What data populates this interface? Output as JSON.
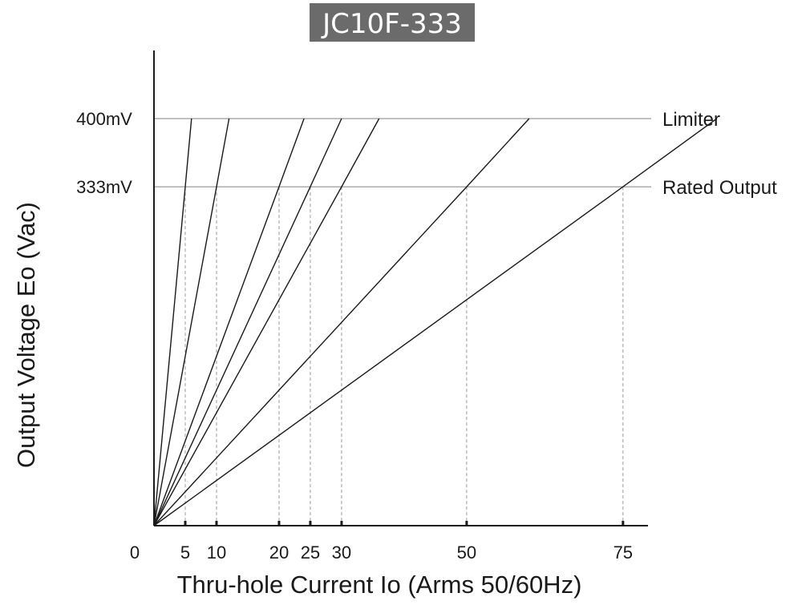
{
  "chart_data": {
    "type": "line",
    "title": "JC10F-333",
    "xlabel": "Thru-hole Current Io (Arms 50/60Hz)",
    "ylabel": "Output Voltage Eo (Vac)",
    "x_origin_label": "0",
    "xticks": [
      5,
      10,
      20,
      25,
      30,
      50,
      75
    ],
    "xlim": [
      0,
      79
    ],
    "ylim": [
      0,
      0.5
    ],
    "reference_lines": [
      {
        "label": "Limiter",
        "value": 0.4,
        "tick_label": "400mV"
      },
      {
        "label": "Rated Output",
        "value": 0.333,
        "tick_label": "333mV"
      }
    ],
    "series": [
      {
        "rated_current": 5,
        "x": [
          0,
          5,
          6
        ],
        "y": [
          0,
          0.333,
          0.4
        ]
      },
      {
        "rated_current": 10,
        "x": [
          0,
          10,
          12
        ],
        "y": [
          0,
          0.333,
          0.4
        ]
      },
      {
        "rated_current": 20,
        "x": [
          0,
          20,
          24
        ],
        "y": [
          0,
          0.333,
          0.4
        ]
      },
      {
        "rated_current": 25,
        "x": [
          0,
          25,
          30
        ],
        "y": [
          0,
          0.333,
          0.4
        ]
      },
      {
        "rated_current": 30,
        "x": [
          0,
          30,
          36
        ],
        "y": [
          0,
          0.333,
          0.4
        ]
      },
      {
        "rated_current": 50,
        "x": [
          0,
          50,
          60
        ],
        "y": [
          0,
          0.333,
          0.4
        ]
      },
      {
        "rated_current": 75,
        "x": [
          0,
          75,
          90
        ],
        "y": [
          0,
          0.333,
          0.4
        ]
      }
    ],
    "grid": false,
    "colors": {
      "line": "#1a1a1a",
      "reference": "#9a9a9a",
      "title_background": "#6b6b6b"
    }
  }
}
